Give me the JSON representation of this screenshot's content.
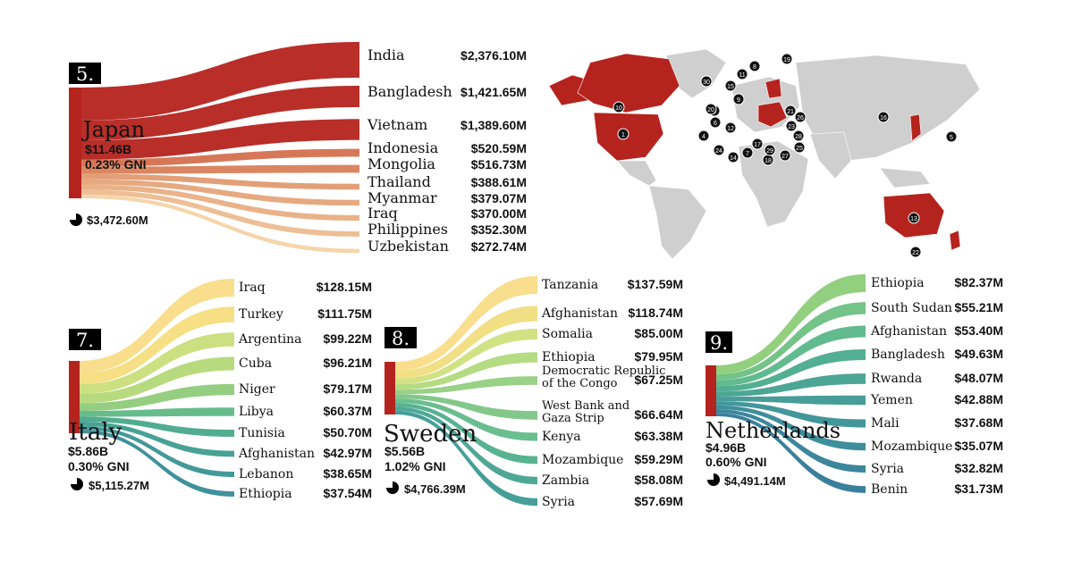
{
  "chart_data": [
    {
      "type": "sankey",
      "rank": "5.",
      "donor": "Japan",
      "total": "$11.46B",
      "gni": "0.23% GNI",
      "recipients_total": "$3,472.60M",
      "categories": [
        "India",
        "Bangladesh",
        "Vietnam",
        "Indonesia",
        "Mongolia",
        "Thailand",
        "Myanmar",
        "Iraq",
        "Philippines",
        "Uzbekistan"
      ],
      "value_labels": [
        "$2,376.10M",
        "$1,421.65M",
        "$1,389.60M",
        "$520.59M",
        "$516.73M",
        "$388.61M",
        "$379.07M",
        "$370.00M",
        "$352.30M",
        "$272.74M"
      ],
      "values": [
        2376.1,
        1421.65,
        1389.6,
        520.59,
        516.73,
        388.61,
        379.07,
        370.0,
        352.3,
        272.74
      ],
      "colors": [
        "#b5231e",
        "#b5231e",
        "#b5231e",
        "#d4714e",
        "#d9805a",
        "#e19a70",
        "#e5a479",
        "#e9ae83",
        "#edba8f",
        "#f4d3a6"
      ]
    },
    {
      "type": "sankey",
      "rank": "7.",
      "donor": "Italy",
      "total": "$5.86B",
      "gni": "0.30% GNI",
      "recipients_total": "$5,115.27M",
      "categories": [
        "Iraq",
        "Turkey",
        "Argentina",
        "Cuba",
        "Niger",
        "Libya",
        "Tunisia",
        "Afghanistan",
        "Lebanon",
        "Ethiopia"
      ],
      "value_labels": [
        "$128.15M",
        "$111.75M",
        "$99.22M",
        "$96.21M",
        "$79.17M",
        "$60.37M",
        "$50.70M",
        "$42.97M",
        "$38.65M",
        "$37.54M"
      ],
      "values": [
        128.15,
        111.75,
        99.22,
        96.21,
        79.17,
        60.37,
        50.7,
        42.97,
        38.65,
        37.54
      ],
      "colors": [
        "#f9dc87",
        "#f5dd7d",
        "#c9dd7a",
        "#b4d878",
        "#8fcb79",
        "#5fb886",
        "#48a88a",
        "#3f9c8f",
        "#3a9393",
        "#358b96"
      ]
    },
    {
      "type": "sankey",
      "rank": "8.",
      "donor": "Sweden",
      "total": "$5.56B",
      "gni": "1.02% GNI",
      "recipients_total": "$4,766.39M",
      "categories": [
        "Tanzania",
        "Afghanistan",
        "Somalia",
        "Ethiopia",
        "Democratic Republic of the Congo",
        "West Bank and Gaza Strip",
        "Kenya",
        "Mozambique",
        "Zambia",
        "Syria"
      ],
      "category_lines": [
        [
          "Tanzania"
        ],
        [
          "Afghanistan"
        ],
        [
          "Somalia"
        ],
        [
          "Ethiopia"
        ],
        [
          "Democratic Republic",
          "of the Congo"
        ],
        [
          "West Bank and",
          "Gaza Strip"
        ],
        [
          "Kenya"
        ],
        [
          "Mozambique"
        ],
        [
          "Zambia"
        ],
        [
          "Syria"
        ]
      ],
      "value_labels": [
        "$137.59M",
        "$118.74M",
        "$85.00M",
        "$79.95M",
        "$67.25M",
        "$66.64M",
        "$63.38M",
        "$59.29M",
        "$58.08M",
        "$57.69M"
      ],
      "values": [
        137.59,
        118.74,
        85.0,
        79.95,
        67.25,
        66.64,
        63.38,
        59.29,
        58.08,
        57.69
      ],
      "colors": [
        "#f9dc87",
        "#f0dd80",
        "#cfe07e",
        "#b1d97c",
        "#94cf7f",
        "#7cc584",
        "#62ba89",
        "#4fae8c",
        "#44a38f",
        "#3c9993"
      ]
    },
    {
      "type": "sankey",
      "rank": "9.",
      "donor": "Netherlands",
      "total": "$4.96B",
      "gni": "0.60% GNI",
      "recipients_total": "$4,491.14M",
      "categories": [
        "Ethiopia",
        "South Sudan",
        "Afghanistan",
        "Bangladesh",
        "Rwanda",
        "Yemen",
        "Mali",
        "Mozambique",
        "Syria",
        "Benin"
      ],
      "value_labels": [
        "$82.37M",
        "$55.21M",
        "$53.40M",
        "$49.63M",
        "$48.07M",
        "$42.88M",
        "$37.68M",
        "$35.07M",
        "$32.82M",
        "$31.73M"
      ],
      "values": [
        82.37,
        55.21,
        53.4,
        49.63,
        48.07,
        42.88,
        37.68,
        35.07,
        32.82,
        31.73
      ],
      "colors": [
        "#8ccc78",
        "#6dc083",
        "#5ab689",
        "#4aab8c",
        "#43a18f",
        "#3e9892",
        "#399095",
        "#358896",
        "#328097",
        "#2f7997"
      ]
    }
  ],
  "map": {
    "land_color": "#cfcfcf",
    "highlight_color": "#b5231e",
    "markers": [
      "1",
      "3",
      "4",
      "5",
      "6",
      "7",
      "8",
      "9",
      "10",
      "11",
      "12",
      "13",
      "14",
      "15",
      "16",
      "17",
      "18",
      "19",
      "20",
      "21",
      "22",
      "23",
      "24",
      "25",
      "26",
      "27",
      "28",
      "29",
      "30"
    ]
  }
}
